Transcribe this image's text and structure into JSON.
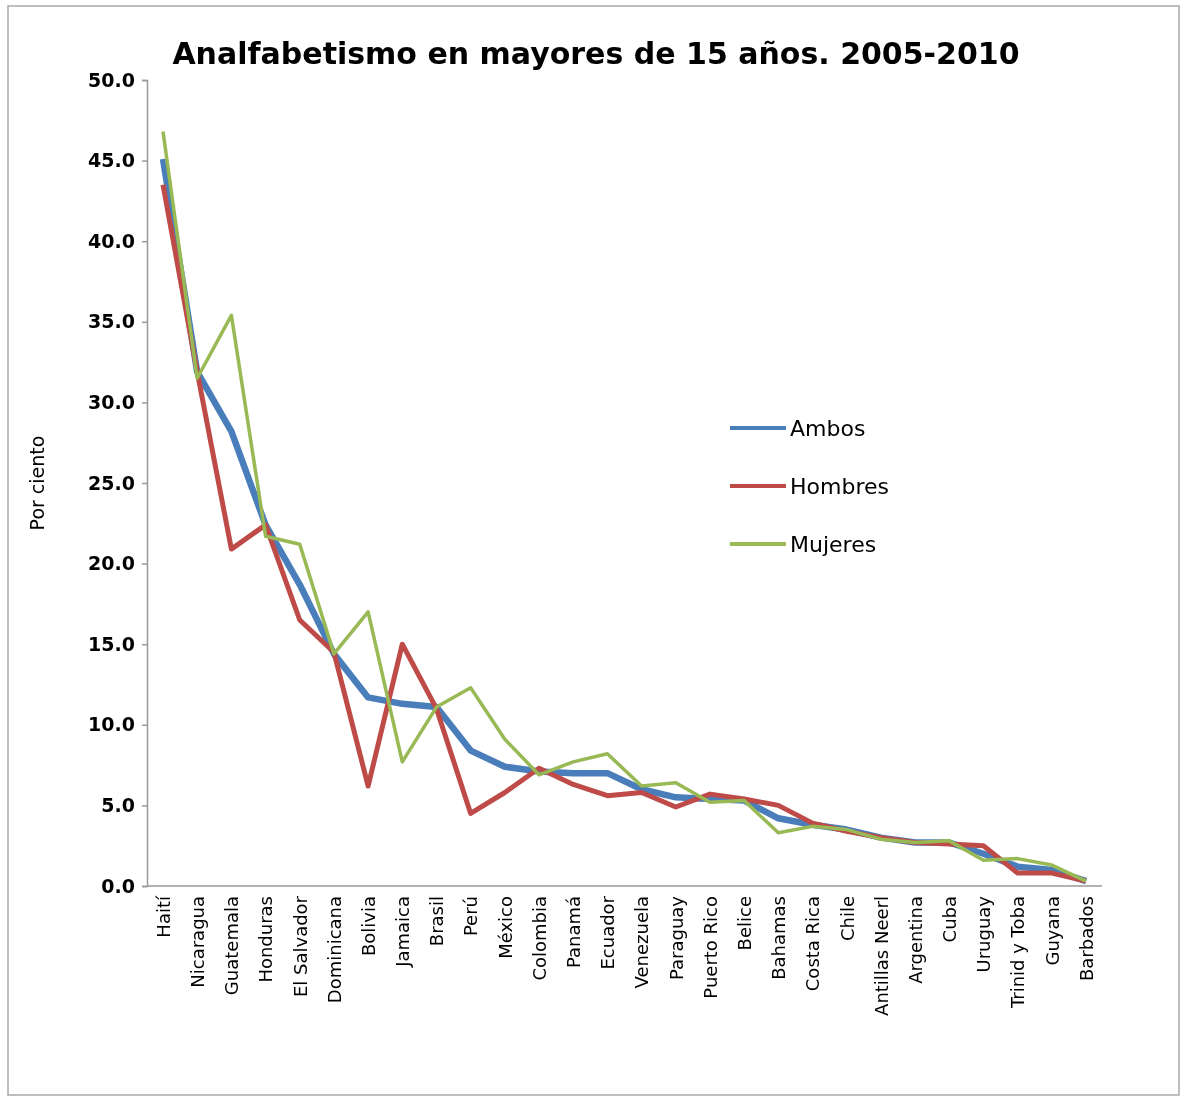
{
  "chart_data": {
    "type": "line",
    "title": "Analfabetismo en mayores de 15 años. 2005-2010",
    "ylabel": "Por ciento",
    "categories": [
      "Haití",
      "Nicaragua",
      "Guatemala",
      "Honduras",
      "El Salvador",
      "Dominicana",
      "Bolivia",
      "Jamaica",
      "Brasil",
      "Perú",
      "México",
      "Colombia",
      "Panamá",
      "Ecuador",
      "Venezuela",
      "Paraguay",
      "Puerto Rico",
      "Belice",
      "Bahamas",
      "Costa Rica",
      "Chile",
      "Antillas Neerl",
      "Argentina",
      "Cuba",
      "Uruguay",
      "Trinid y Toba",
      "Guyana",
      "Barbados"
    ],
    "series": [
      {
        "name": "Ambos",
        "color": "#4a7ebb",
        "values": [
          45.1,
          31.9,
          28.2,
          22.4,
          18.7,
          14.4,
          11.7,
          11.3,
          11.1,
          8.4,
          7.4,
          7.1,
          7.0,
          7.0,
          6.0,
          5.5,
          5.4,
          5.3,
          4.2,
          3.8,
          3.5,
          3.0,
          2.7,
          2.7,
          2.0,
          1.2,
          1.0,
          0.3
        ]
      },
      {
        "name": "Hombres",
        "color": "#be4b48",
        "values": [
          43.5,
          31.9,
          20.9,
          22.4,
          16.5,
          14.5,
          6.2,
          15.0,
          11.0,
          4.5,
          5.8,
          7.3,
          6.3,
          5.6,
          5.8,
          4.9,
          5.7,
          5.4,
          5.0,
          3.9,
          3.4,
          3.0,
          2.7,
          2.6,
          2.5,
          0.8,
          0.8,
          0.3
        ]
      },
      {
        "name": "Mujeres",
        "color": "#98b954",
        "values": [
          46.8,
          31.5,
          35.4,
          21.7,
          21.2,
          14.4,
          17.0,
          7.7,
          11.1,
          12.3,
          9.1,
          6.9,
          7.7,
          8.2,
          6.2,
          6.4,
          5.2,
          5.3,
          3.3,
          3.7,
          3.5,
          2.9,
          2.7,
          2.8,
          1.6,
          1.7,
          1.3,
          0.3
        ]
      }
    ],
    "ylim": [
      0,
      50
    ],
    "yticks": [
      {
        "value": 0,
        "label": "0.0"
      },
      {
        "value": 5,
        "label": "5.0"
      },
      {
        "value": 10,
        "label": "10.0"
      },
      {
        "value": 15,
        "label": "15.0"
      },
      {
        "value": 20,
        "label": "20.0"
      },
      {
        "value": 25,
        "label": "25.0"
      },
      {
        "value": 30,
        "label": "30.0"
      },
      {
        "value": 35,
        "label": "35.0"
      },
      {
        "value": 40,
        "label": "40.0"
      },
      {
        "value": 45,
        "label": "45.0"
      },
      {
        "value": 50,
        "label": "50.0"
      }
    ],
    "grid": false,
    "legend": "right",
    "marker": "none",
    "line_style": "solid"
  }
}
